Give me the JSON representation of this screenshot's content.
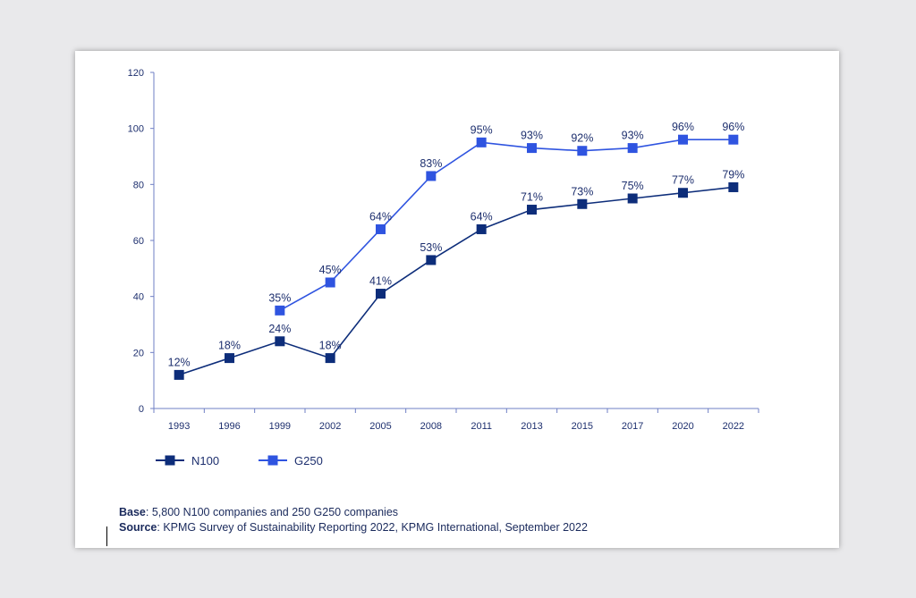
{
  "chart_data": {
    "type": "line",
    "title": "",
    "xlabel": "",
    "ylabel": "",
    "ylim": [
      0,
      120
    ],
    "yticks": [
      0,
      20,
      40,
      60,
      80,
      100,
      120
    ],
    "categories": [
      "1993",
      "1996",
      "1999",
      "2002",
      "2005",
      "2008",
      "2011",
      "2013",
      "2015",
      "2017",
      "2020",
      "2022"
    ],
    "grid": false,
    "legend_position": "bottom-left",
    "series": [
      {
        "name": "N100",
        "color": "#0d2d7a",
        "values": [
          12,
          18,
          24,
          18,
          41,
          53,
          64,
          71,
          73,
          75,
          77,
          79
        ],
        "labels": [
          "12%",
          "18%",
          "24%",
          "18%",
          "41%",
          "53%",
          "64%",
          "71%",
          "73%",
          "75%",
          "77%",
          "79%"
        ]
      },
      {
        "name": "G250",
        "color": "#2f54e0",
        "values": [
          null,
          null,
          35,
          45,
          64,
          83,
          95,
          93,
          92,
          93,
          96,
          96
        ],
        "labels": [
          null,
          null,
          "35%",
          "45%",
          "64%",
          "83%",
          "95%",
          "93%",
          "92%",
          "93%",
          "96%",
          "96%"
        ]
      }
    ]
  },
  "footnotes": {
    "base_label": "Base",
    "base_text": ": 5,800 N100 companies and 250 G250 companies",
    "source_label": "Source",
    "source_text": ": KPMG Survey of Sustainability Reporting 2022, KPMG International, September 2022"
  },
  "colors": {
    "axis": "#6f7fc4",
    "text": "#1d2f6e"
  }
}
